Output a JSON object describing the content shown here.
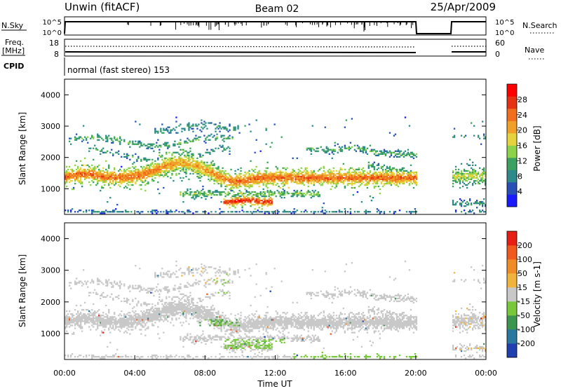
{
  "header": {
    "station": "Unwin (fitACF)",
    "beam": "Beam 02",
    "date": "25/Apr/2009"
  },
  "top_panels": {
    "nsky_label": "N.Sky",
    "nsky_ticks": [
      "10^5",
      "10^0"
    ],
    "nsearch_label": "N.Search",
    "nsearch_ticks": [
      "10^5",
      "10^0"
    ],
    "freq_label": "Freq.",
    "freq_unit": "[MHz]",
    "freq_ticks": [
      "18",
      "8"
    ],
    "nave_label": "Nave",
    "nave_ticks": [
      "60",
      "0"
    ],
    "cpid_label": "CPID",
    "cpid_text": "normal (fast stereo) 153"
  },
  "chart_data": [
    {
      "type": "heatmap",
      "name": "power",
      "xlabel": "",
      "ylabel": "Slant Range [km]",
      "xlim": [
        0,
        24
      ],
      "ylim": [
        180,
        4500
      ],
      "yticks": [
        "1000",
        "2000",
        "3000",
        "4000"
      ],
      "colorbar": {
        "label": "Power [dB]",
        "ticks": [
          "4",
          "8",
          "12",
          "16",
          "20",
          "24",
          "28"
        ],
        "colors": [
          "#1a1aff",
          "#2850b4",
          "#2e8a8a",
          "#3ca060",
          "#8cd24a",
          "#e6d23c",
          "#f0a028",
          "#f06e1e",
          "#e63214",
          "#ff0000"
        ],
        "range": [
          0,
          32
        ]
      },
      "data_gap": [
        20,
        22
      ]
    },
    {
      "type": "heatmap",
      "name": "velocity",
      "xlabel": "Time UT",
      "ylabel": "Slant Range [km]",
      "xlim": [
        0,
        24
      ],
      "ylim": [
        180,
        4500
      ],
      "xticks": [
        "00:00",
        "04:00",
        "08:00",
        "12:00",
        "16:00",
        "20:00",
        "00:00"
      ],
      "yticks": [
        "1000",
        "2000",
        "3000",
        "4000"
      ],
      "colorbar": {
        "label": "Velocity [m s-1]",
        "ticks": [
          "200",
          "100",
          "50",
          "15",
          "-15",
          "-50",
          "-100",
          "-200"
        ],
        "colors": [
          "#2040b0",
          "#2878a0",
          "#3c9650",
          "#78c83c",
          "#c8c8c8",
          "#f0b43c",
          "#f08c28",
          "#f05a1e",
          "#e61e14"
        ],
        "range": [
          -250,
          250
        ]
      },
      "data_gap": [
        20,
        22
      ]
    }
  ]
}
